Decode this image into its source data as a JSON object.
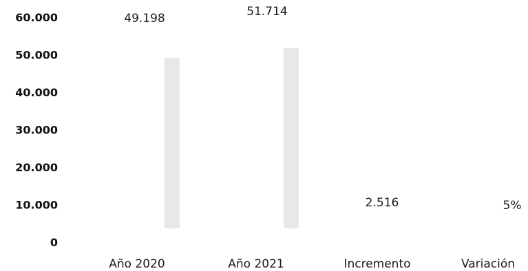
{
  "chart_data": {
    "type": "bar",
    "categories": [
      "Año 2020",
      "Año 2021",
      "Incremento",
      "Variación"
    ],
    "values": [
      49198,
      51714,
      2516,
      5
    ],
    "data_labels": [
      "49.198",
      "51.714",
      "2.516",
      "5%"
    ],
    "y_ticks": [
      "0",
      "10.000",
      "20.000",
      "30.000",
      "40.000",
      "50.000",
      "60.000"
    ],
    "ylim": [
      0,
      60000
    ],
    "grid": false,
    "legend": "none",
    "bar_color": "#e6e6e6"
  }
}
